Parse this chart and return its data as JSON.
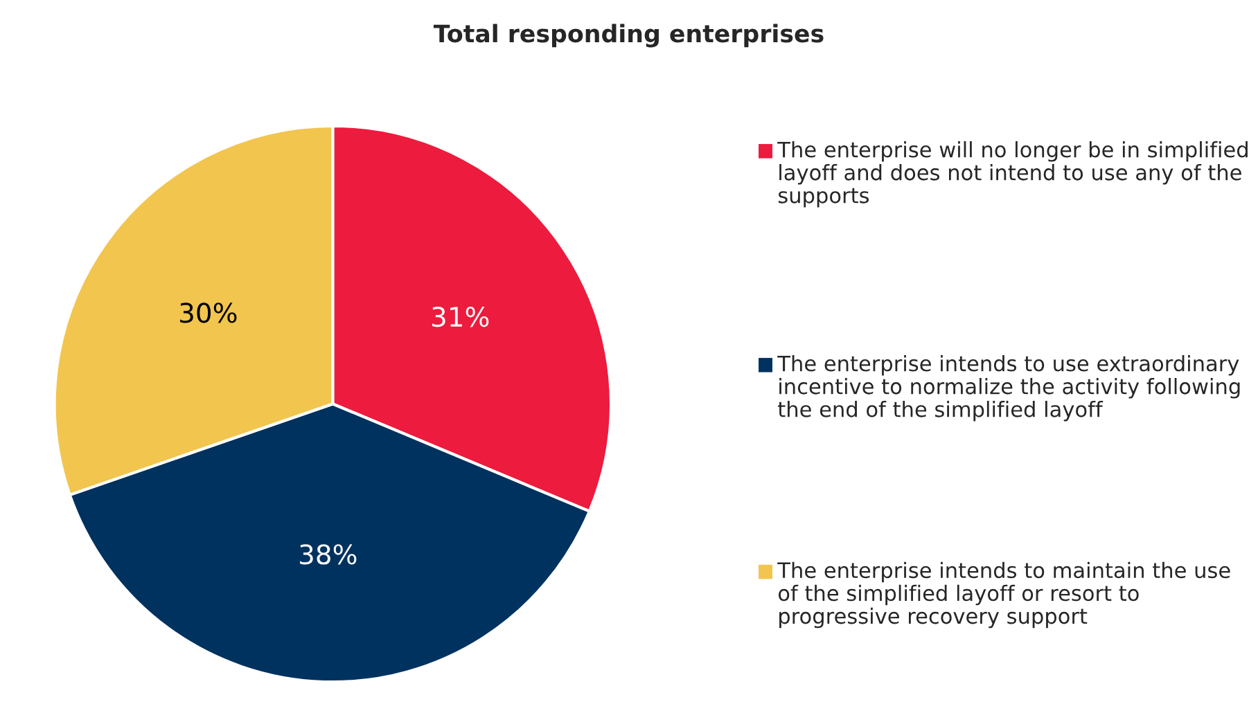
{
  "chart_data": {
    "type": "pie",
    "title": "Total responding enterprises",
    "categories": [
      "The enterprise will no longer be in simplified layoff and does not intend to use any of the supports",
      "The enterprise intends to use extraordinary incentive to normalize the activity following the end of the simplified layoff",
      "The enterprise intends to maintain the use of the simplified layoff or resort to  progressive recovery support"
    ],
    "values": [
      31,
      38,
      30
    ],
    "value_labels": [
      "31%",
      "38%",
      "30%"
    ],
    "colors": [
      "#ed1b3d",
      "#00325f",
      "#f1c54e"
    ],
    "legend": "right"
  }
}
